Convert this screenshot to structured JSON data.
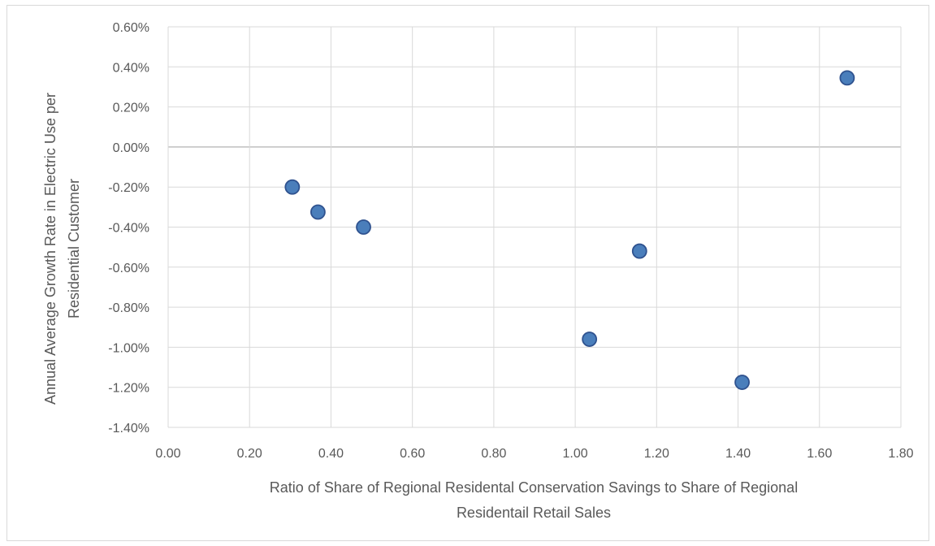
{
  "chart_data": {
    "type": "scatter",
    "title": "",
    "xlabel": [
      "Ratio of Share of Regional Residental Conservation Savings to Share of Regional",
      "Residentail Retail Sales"
    ],
    "ylabel": [
      "Annual Average Growth Rate in Electric Use per",
      "Residential Customer"
    ],
    "xlim": [
      0,
      1.8
    ],
    "ylim": [
      -1.4,
      0.6
    ],
    "x_ticks": [
      "0.00",
      "0.20",
      "0.40",
      "0.60",
      "0.80",
      "1.00",
      "1.20",
      "1.40",
      "1.60",
      "1.80"
    ],
    "y_ticks": [
      "0.60%",
      "0.40%",
      "0.20%",
      "0.00%",
      "-0.20%",
      "-0.40%",
      "-0.60%",
      "-0.80%",
      "-1.00%",
      "-1.20%",
      "-1.40%"
    ],
    "grid": true,
    "legend": "none",
    "series": [
      {
        "color": "#4a7ebb",
        "points": [
          {
            "x": 0.305,
            "y": -0.2
          },
          {
            "x": 0.368,
            "y": -0.325
          },
          {
            "x": 0.48,
            "y": -0.4
          },
          {
            "x": 1.035,
            "y": -0.96
          },
          {
            "x": 1.158,
            "y": -0.52
          },
          {
            "x": 1.41,
            "y": -1.175
          },
          {
            "x": 1.668,
            "y": 0.345
          }
        ]
      }
    ]
  }
}
